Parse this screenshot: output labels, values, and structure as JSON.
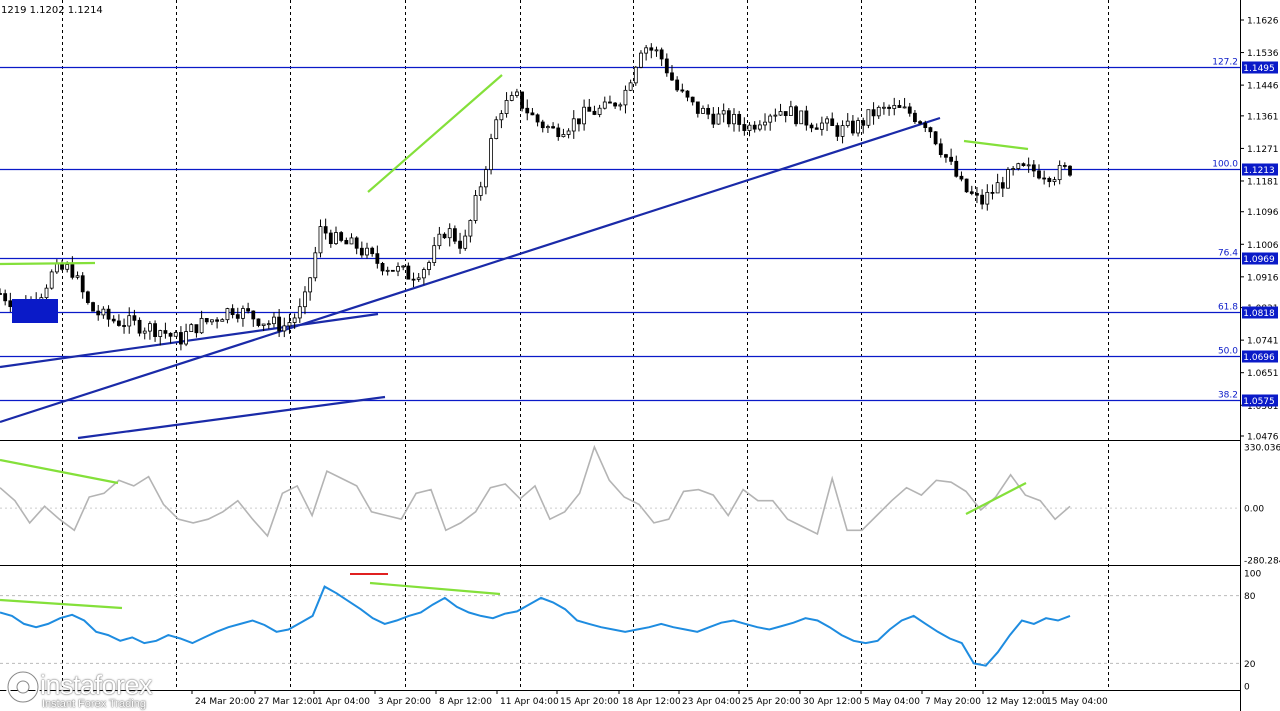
{
  "header": {
    "ohlc": "1219 1.1202 1.1214"
  },
  "colors": {
    "accent": "#0a1ac8",
    "trendline": "#1a2aa8",
    "divergence": "#84e03a",
    "candle": "#000000",
    "cci_line": "#b4b4b4",
    "rsi_line": "#1e8ce0",
    "marker_red": "#e02020"
  },
  "logo": {
    "name": "instaforex",
    "tagline": "Instant Forex Trading",
    "icon": "instaforex-logo-icon"
  },
  "chart_data": [
    {
      "type": "candlestick",
      "title": "",
      "x_ticks": [
        "24 Mar 20:00",
        "27 Mar 12:00",
        "1 Apr 04:00",
        "3 Apr 20:00",
        "8 Apr 12:00",
        "11 Apr 04:00",
        "15 Apr 20:00",
        "18 Apr 12:00",
        "23 Apr 04:00",
        "25 Apr 20:00",
        "30 Apr 12:00",
        "5 May 04:00",
        "7 May 20:00",
        "12 May 12:00",
        "15 May 04:00"
      ],
      "y_ticks": [
        "1.1626",
        "1.1536",
        "1.1446",
        "1.1361",
        "1.1271",
        "1.1181",
        "1.1096",
        "1.1006",
        "1.0916",
        "1.0831",
        "1.0741",
        "1.0651",
        "1.0561",
        "1.0476"
      ],
      "ylim": [
        1.0476,
        1.1626
      ],
      "fib_levels": [
        {
          "label": "127.2",
          "value": 1.1495,
          "tag": "1.1495"
        },
        {
          "label": "100.0",
          "value": 1.1213,
          "tag": "1.1213"
        },
        {
          "label": "76.4",
          "value": 1.0969,
          "tag": "1.0969"
        },
        {
          "label": "61.8",
          "value": 1.0818,
          "tag": "1.0818"
        },
        {
          "label": "50.0",
          "value": 1.0696,
          "tag": "1.0696"
        },
        {
          "label": "38.2",
          "value": 1.0575,
          "tag": "1.0575"
        }
      ],
      "close_path": [
        1.087,
        1.084,
        1.085,
        1.093,
        1.094,
        1.083,
        1.08,
        1.079,
        1.078,
        1.077,
        1.074,
        1.078,
        1.08,
        1.083,
        1.081,
        1.079,
        1.078,
        1.083,
        1.105,
        1.101,
        1.1,
        1.096,
        1.094,
        1.092,
        1.095,
        1.105,
        1.1,
        1.118,
        1.138,
        1.141,
        1.135,
        1.132,
        1.134,
        1.137,
        1.138,
        1.142,
        1.156,
        1.153,
        1.143,
        1.138,
        1.136,
        1.135,
        1.133,
        1.137,
        1.138,
        1.135,
        1.134,
        1.132,
        1.133,
        1.137,
        1.138,
        1.137,
        1.134,
        1.125,
        1.116,
        1.112,
        1.117,
        1.121,
        1.121,
        1.12,
        1.1214
      ]
    },
    {
      "type": "line",
      "name": "CCI",
      "y_ticks": [
        "330.0361",
        "0.00",
        "-280.2846"
      ],
      "ylim": [
        -280.2846,
        330.0361
      ],
      "values": [
        110,
        40,
        -80,
        10,
        -60,
        -120,
        60,
        80,
        150,
        120,
        170,
        20,
        -60,
        -80,
        -60,
        -20,
        40,
        -60,
        -150,
        80,
        120,
        -40,
        200,
        160,
        120,
        -20,
        -40,
        -60,
        80,
        100,
        -120,
        -80,
        -20,
        110,
        130,
        50,
        120,
        -60,
        -20,
        80,
        330,
        150,
        60,
        20,
        -80,
        -60,
        90,
        100,
        70,
        -40,
        100,
        40,
        40,
        -60,
        -100,
        -140,
        160,
        -120,
        -120,
        -40,
        40,
        110,
        70,
        150,
        140,
        90,
        -10,
        60,
        180,
        70,
        40,
        -60,
        10
      ]
    },
    {
      "type": "line",
      "name": "RSI",
      "y_ticks": [
        "100",
        "80",
        "20",
        "0"
      ],
      "ylim": [
        0,
        100
      ],
      "values": [
        65,
        62,
        55,
        52,
        55,
        60,
        63,
        58,
        48,
        45,
        40,
        43,
        38,
        40,
        45,
        42,
        38,
        43,
        48,
        52,
        55,
        58,
        54,
        48,
        50,
        56,
        62,
        88,
        82,
        75,
        68,
        60,
        55,
        58,
        62,
        65,
        72,
        78,
        70,
        65,
        62,
        60,
        64,
        66,
        72,
        78,
        74,
        68,
        58,
        55,
        52,
        50,
        48,
        50,
        52,
        55,
        52,
        50,
        48,
        52,
        56,
        58,
        55,
        52,
        50,
        53,
        56,
        60,
        58,
        52,
        45,
        40,
        38,
        40,
        50,
        58,
        62,
        55,
        48,
        42,
        38,
        20,
        18,
        30,
        45,
        58,
        55,
        60,
        58,
        62
      ]
    }
  ]
}
